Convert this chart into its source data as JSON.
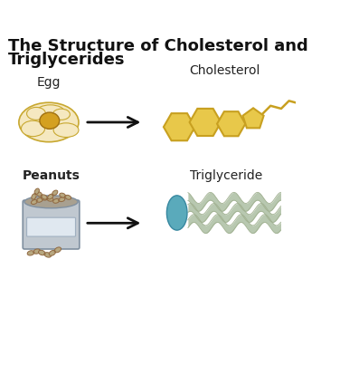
{
  "title_line1": "The Structure of Cholesterol and",
  "title_line2": "Triglycerides",
  "title_fontsize": 13,
  "bg_color": "#ffffff",
  "label_egg": "Egg",
  "label_peanuts": "Peanuts",
  "label_cholesterol": "Cholesterol",
  "label_triglyceride": "Triglyceride",
  "arrow_color": "#111111",
  "hex_color_fill": "#E8C84A",
  "hex_color_edge": "#C8A020",
  "hex_tail_color": "#C8A020",
  "egg_white_color": "#F5E8C0",
  "egg_yolk_color": "#D4A020",
  "egg_outline_color": "#C8A830",
  "trig_head_color": "#5AAABB",
  "trig_wave_color": "#B8C8B0",
  "trig_wave_edge": "#A0B090",
  "can_body_color": "#C0C8D0",
  "can_label_color": "#E0E8F0",
  "peanut_color": "#B8A880",
  "peanut_edge_color": "#906840"
}
